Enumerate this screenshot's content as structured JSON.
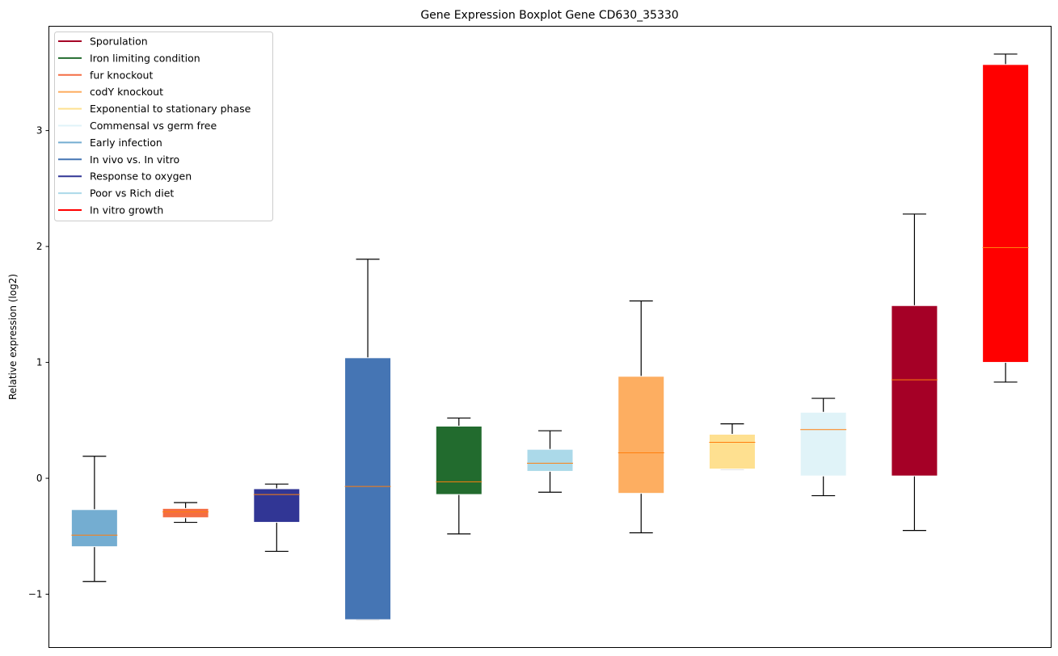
{
  "chart_data": {
    "type": "box",
    "title": "Gene Expression Boxplot Gene CD630_35330",
    "xlabel": "",
    "ylabel": "Relative expression (log2)",
    "ylim": [
      -1.46,
      3.9
    ],
    "yticks": [
      -1,
      0,
      1,
      2,
      3
    ],
    "ytick_labels": [
      "−1",
      "0",
      "1",
      "2",
      "3"
    ],
    "grid": false,
    "legend_position": "top-left",
    "median_color": "#ff7f0e",
    "legend": [
      {
        "label": "Sporulation",
        "color": "#a50026"
      },
      {
        "label": "Iron limiting condition",
        "color": "#226b2e"
      },
      {
        "label": "fur knockout",
        "color": "#f46d43"
      },
      {
        "label": "codY knockout",
        "color": "#fdae61"
      },
      {
        "label": "Exponential to stationary phase",
        "color": "#fee090"
      },
      {
        "label": "Commensal vs germ free",
        "color": "#e0f3f8"
      },
      {
        "label": "Early infection",
        "color": "#74add1"
      },
      {
        "label": "In vivo vs. In vitro",
        "color": "#4575b4"
      },
      {
        "label": "Response to oxygen",
        "color": "#313695"
      },
      {
        "label": "Poor vs Rich diet",
        "color": "#abd9e9"
      },
      {
        "label": "In vitro growth",
        "color": "#ff0000"
      }
    ],
    "boxes": [
      {
        "name": "Early infection",
        "color": "#74add1",
        "whislo": -0.89,
        "q1": -0.59,
        "med": -0.49,
        "q3": -0.27,
        "whishi": 0.19
      },
      {
        "name": "fur knockout",
        "color": "#f46d43",
        "whislo": -0.38,
        "q1": -0.34,
        "med": -0.29,
        "q3": -0.26,
        "whishi": -0.21
      },
      {
        "name": "Response to oxygen",
        "color": "#313695",
        "whislo": -0.63,
        "q1": -0.38,
        "med": -0.14,
        "q3": -0.09,
        "whishi": -0.05
      },
      {
        "name": "In vivo vs. In vitro",
        "color": "#4575b4",
        "whislo": -1.22,
        "q1": -1.22,
        "med": -0.07,
        "q3": 1.04,
        "whishi": 1.89
      },
      {
        "name": "Iron limiting condition",
        "color": "#226b2e",
        "whislo": -0.48,
        "q1": -0.14,
        "med": -0.03,
        "q3": 0.45,
        "whishi": 0.52
      },
      {
        "name": "Poor vs Rich diet",
        "color": "#abd9e9",
        "whislo": -0.12,
        "q1": 0.06,
        "med": 0.13,
        "q3": 0.25,
        "whishi": 0.41
      },
      {
        "name": "codY knockout",
        "color": "#fdae61",
        "whislo": -0.47,
        "q1": -0.13,
        "med": 0.22,
        "q3": 0.88,
        "whishi": 1.53
      },
      {
        "name": "Exponential to stationary phase",
        "color": "#fee090",
        "whislo": 0.08,
        "q1": 0.08,
        "med": 0.31,
        "q3": 0.38,
        "whishi": 0.47
      },
      {
        "name": "Commensal vs germ free",
        "color": "#e0f3f8",
        "whislo": -0.15,
        "q1": 0.02,
        "med": 0.42,
        "q3": 0.57,
        "whishi": 0.69
      },
      {
        "name": "Sporulation",
        "color": "#a50026",
        "whislo": -0.45,
        "q1": 0.02,
        "med": 0.85,
        "q3": 1.49,
        "whishi": 2.28
      },
      {
        "name": "In vitro growth",
        "color": "#ff0000",
        "whislo": 0.83,
        "q1": 1.0,
        "med": 1.99,
        "q3": 3.57,
        "whishi": 3.66
      }
    ]
  }
}
